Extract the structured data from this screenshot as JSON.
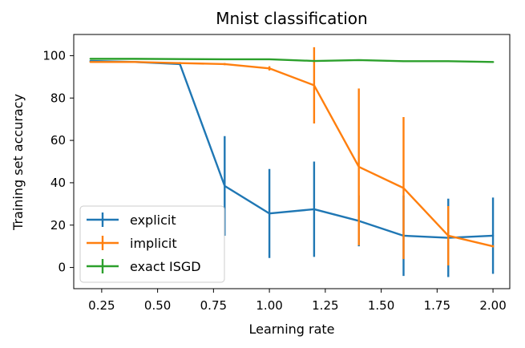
{
  "chart_data": {
    "type": "line",
    "title": "Mnist classification",
    "xlabel": "Learning rate",
    "ylabel": "Training set accuracy",
    "xlim": [
      0.125,
      2.075
    ],
    "ylim": [
      -10,
      110
    ],
    "xticks": [
      0.25,
      0.5,
      0.75,
      1.0,
      1.25,
      1.5,
      1.75,
      2.0
    ],
    "xtick_labels": [
      "0.25",
      "0.50",
      "0.75",
      "1.00",
      "1.25",
      "1.50",
      "1.75",
      "2.00"
    ],
    "yticks": [
      0,
      20,
      40,
      60,
      80,
      100
    ],
    "ytick_labels": [
      "0",
      "20",
      "40",
      "60",
      "80",
      "100"
    ],
    "grid": false,
    "legend_position": "lower-left",
    "series": [
      {
        "name": "explicit",
        "color": "#1f77b4",
        "x": [
          0.2,
          0.4,
          0.6,
          0.8,
          1.0,
          1.2,
          1.4,
          1.6,
          1.8,
          2.0
        ],
        "y": [
          97.5,
          97.0,
          96.0,
          38.5,
          25.5,
          27.5,
          22.0,
          15.0,
          14.0,
          15.0
        ],
        "yerr": [
          0.3,
          0.3,
          0.5,
          23.5,
          21.0,
          22.5,
          12.0,
          19.0,
          18.5,
          18.0
        ]
      },
      {
        "name": "implicit",
        "color": "#ff7f0e",
        "x": [
          0.2,
          0.4,
          0.6,
          0.8,
          1.0,
          1.2,
          1.4,
          1.6,
          1.8,
          2.0
        ],
        "y": [
          97.0,
          97.0,
          96.5,
          96.0,
          94.0,
          86.0,
          47.5,
          37.5,
          15.0,
          10.0
        ],
        "yerr": [
          0.3,
          0.3,
          0.5,
          0.5,
          1.0,
          18.0,
          37.0,
          33.5,
          14.0,
          0.5
        ]
      },
      {
        "name": "exact ISGD",
        "color": "#2ca02c",
        "x": [
          0.2,
          0.4,
          0.6,
          0.8,
          1.0,
          1.2,
          1.4,
          1.6,
          1.8,
          2.0
        ],
        "y": [
          98.5,
          98.5,
          98.4,
          98.3,
          98.3,
          97.5,
          97.9,
          97.4,
          97.4,
          97.0
        ],
        "yerr": [
          0.2,
          0.2,
          0.2,
          0.2,
          0.2,
          0.3,
          0.2,
          0.2,
          0.2,
          0.3
        ]
      }
    ]
  }
}
